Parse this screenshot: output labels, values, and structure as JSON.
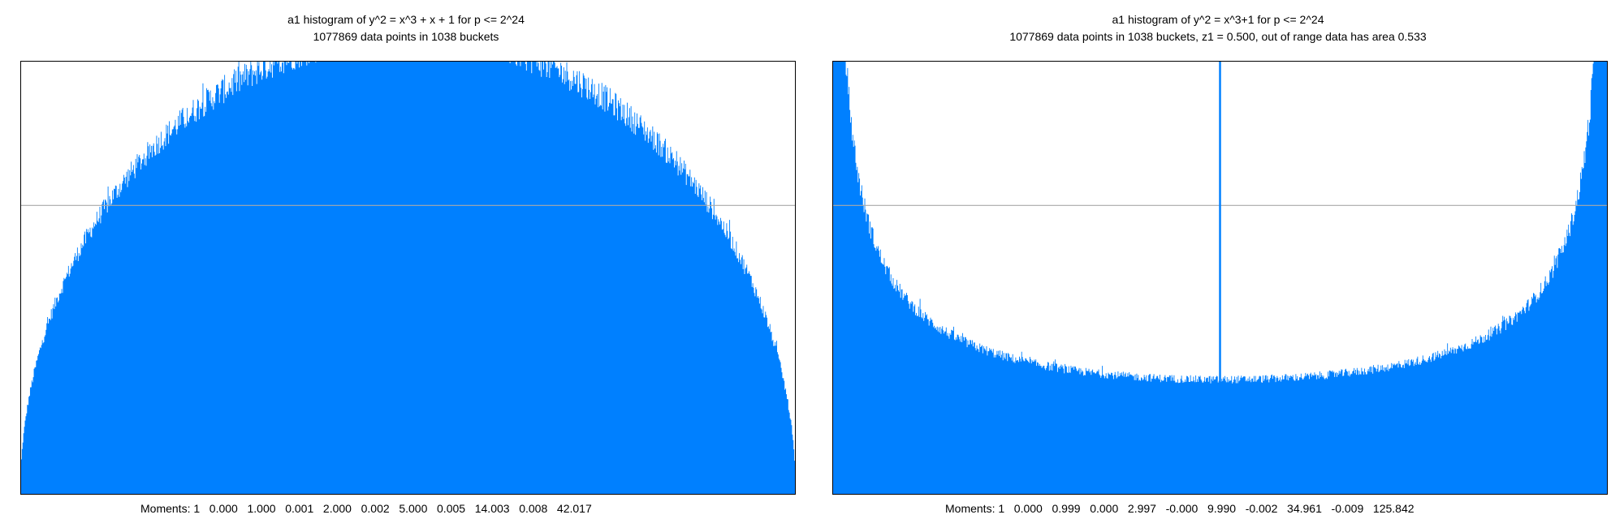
{
  "chart_data": [
    {
      "type": "bar",
      "title": "a1 histogram of y^2 = x^3 + x + 1 for p <= 2^24",
      "subtitle": "1077869 data points in 1038 buckets",
      "footer": "Moments: 1   0.000   1.000   0.001   2.000   0.002   5.000   0.005   14.003   0.008   42.017",
      "moments": [
        1,
        0.0,
        1.0,
        0.001,
        2.0,
        0.002,
        5.0,
        0.005,
        14.003,
        0.008,
        42.017
      ],
      "distribution": "semicircle",
      "data_points": 1077869,
      "buckets": 1038,
      "xlim": [
        -2,
        2
      ],
      "ylim": [
        0,
        0.3
      ],
      "reference_line": 0.2,
      "grid": false,
      "bar_color": "#0080ff",
      "reference_color": "#aaaaaa"
    },
    {
      "type": "bar",
      "title": "a1 histogram of y^2 = x^3+1 for p <= 2^24",
      "subtitle": "1077869 data points in 1038 buckets, z1 = 0.500, out of range data has area 0.533",
      "footer": "Moments: 1   0.000   0.999   0.000   2.997   -0.000   9.990   -0.002   34.961   -0.009   125.842",
      "moments": [
        1,
        0.0,
        0.999,
        0.0,
        2.997,
        -0.0,
        9.99,
        -0.002,
        34.961,
        -0.009,
        125.842
      ],
      "distribution": "cm",
      "data_points": 1077869,
      "buckets": 1038,
      "z1": 0.5,
      "out_of_range_area": 0.533,
      "xlim": [
        -2,
        2
      ],
      "ylim": [
        0,
        0.3
      ],
      "reference_line": 0.2,
      "grid": false,
      "bar_color": "#0080ff",
      "reference_color": "#aaaaaa"
    }
  ]
}
